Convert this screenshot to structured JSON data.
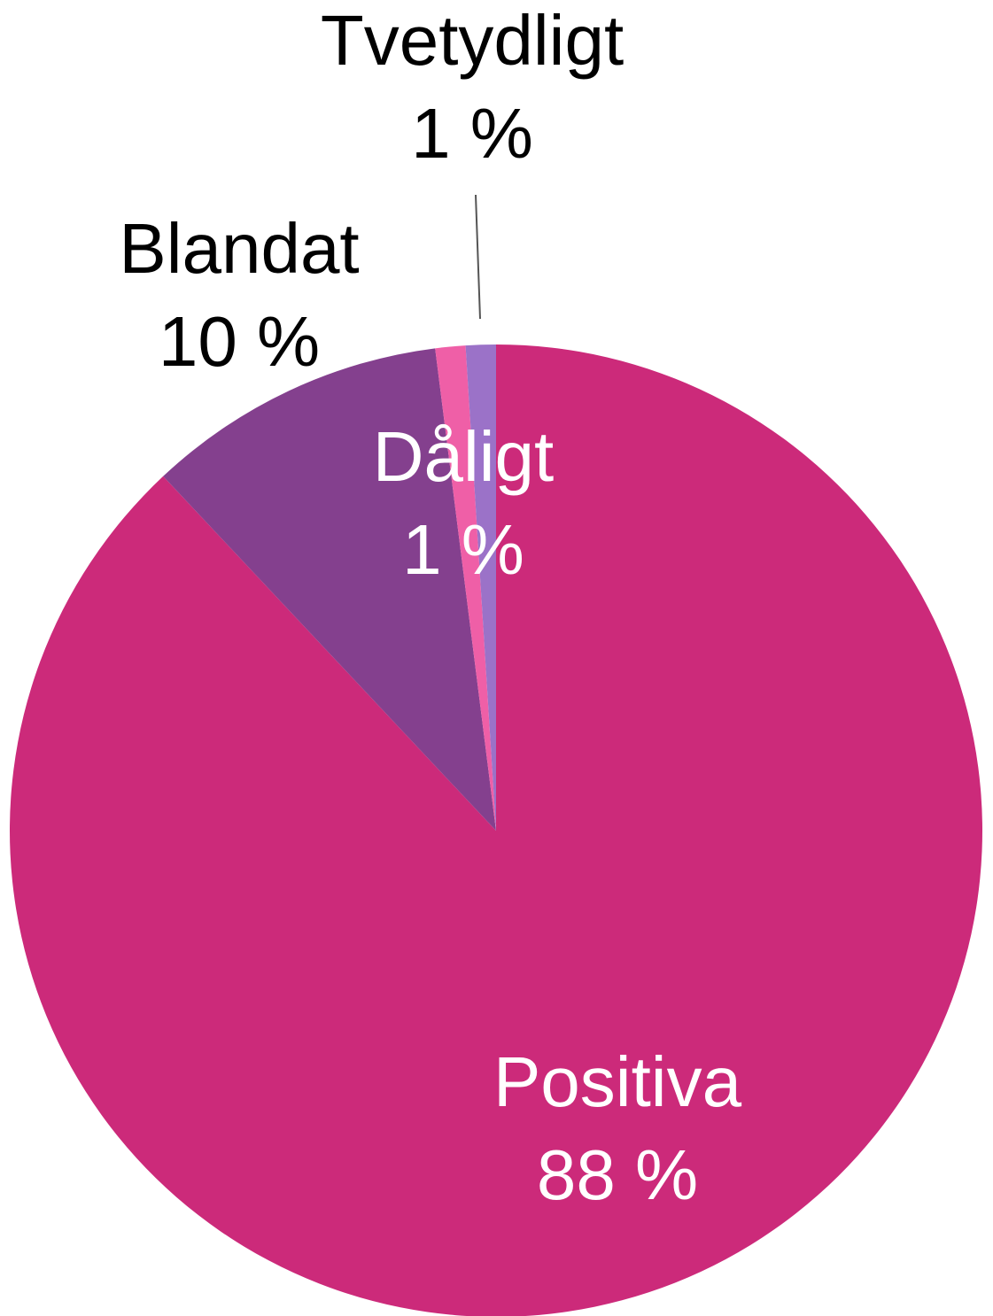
{
  "chart_data": {
    "type": "pie",
    "categories": [
      "Positiva",
      "Blandat",
      "Dåligt",
      "Tvetydligt"
    ],
    "values": [
      88,
      10,
      1,
      1
    ],
    "value_labels": [
      "88 %",
      "10 %",
      "1 %",
      "1 %"
    ],
    "colors": [
      "#cc2a7a",
      "#84408e",
      "#ef5fa7",
      "#9b72c8"
    ]
  }
}
